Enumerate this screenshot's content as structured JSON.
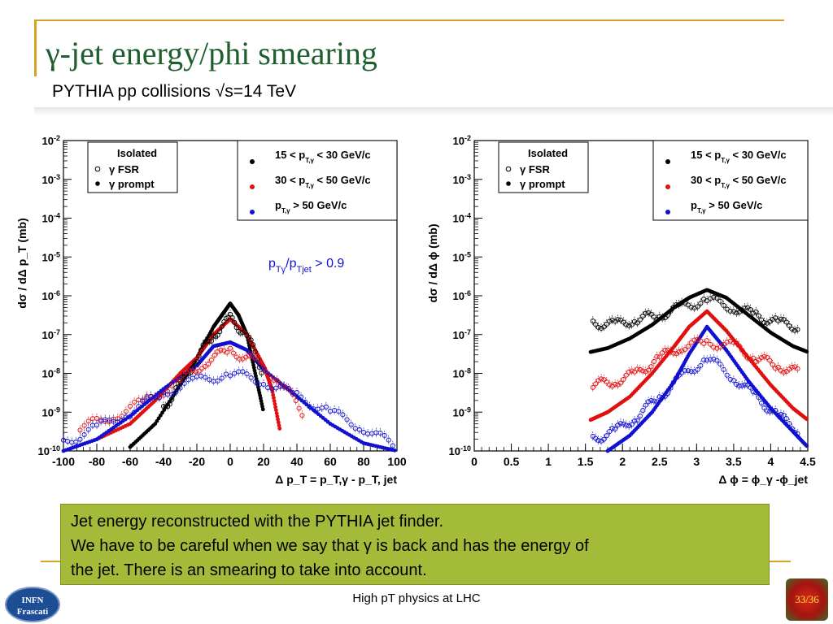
{
  "slide": {
    "title": "γ-jet energy/phi smearing",
    "subtitle": "PYTHIA pp collisions √s=14 TeV",
    "note_lines": [
      "Jet energy reconstructed with the PYTHIA jet finder.",
      "We have to be careful when we say that γ is back and has the energy of",
      "the jet. There is an smearing to take into account."
    ],
    "footer": "High pT physics at LHC",
    "page_number": "33/36",
    "logo_text": [
      "INFN",
      "Frascati"
    ]
  },
  "colors": {
    "accent": "#d8a224",
    "title": "#1f5f2f",
    "note_bg": "#a4bb3a",
    "black_series": "#000000",
    "red_series": "#e01010",
    "blue_series": "#1010d0",
    "cut_label": "#1010d0"
  },
  "chart_data": [
    {
      "type": "scatter",
      "ylabel": "dσ / dΔ p_T  (mb)",
      "xlabel": "Δ p_T = p_T,γ - p_T, jet",
      "xlim": [
        -100,
        100
      ],
      "xticks": [
        -100,
        -80,
        -60,
        -40,
        -20,
        0,
        20,
        40,
        60,
        80,
        100
      ],
      "ylim_log10": [
        -10,
        -2
      ],
      "yticks": [
        "10^-10",
        "10^-9",
        "10^-8",
        "10^-7",
        "10^-6",
        "10^-5",
        "10^-4",
        "10^-3",
        "10^-2"
      ],
      "yscale": "log",
      "annotation": "p_Tγ/p_Tjet > 0.9",
      "legend_marker": {
        "title": "Isolated",
        "entries": [
          "γ FSR",
          "γ prompt"
        ],
        "position": "top-left"
      },
      "legend_color": {
        "entries": [
          "15 < p_T,γ < 30 GeV/c",
          "30 < p_T,γ < 50 GeV/c",
          "p_T,γ > 50 GeV/c"
        ],
        "position": "top-right"
      },
      "series": [
        {
          "name": "15 < p_T,γ < 30 GeV/c",
          "kind": "prompt",
          "color": "black",
          "x": [
            -60,
            -45,
            -30,
            -20,
            -10,
            -5,
            0,
            5,
            10,
            15,
            20
          ],
          "log10_y": [
            -9.9,
            -9.3,
            -8.3,
            -7.6,
            -6.8,
            -6.5,
            -6.2,
            -6.5,
            -7.0,
            -8.0,
            -9.0
          ]
        },
        {
          "name": "30 < p_T,γ < 50 GeV/c",
          "kind": "prompt",
          "color": "red",
          "x": [
            -80,
            -60,
            -45,
            -30,
            -20,
            -10,
            0,
            10,
            20,
            25,
            30
          ],
          "log10_y": [
            -9.7,
            -9.3,
            -8.7,
            -8.0,
            -7.6,
            -7.0,
            -6.6,
            -7.0,
            -7.8,
            -8.4,
            -9.5
          ]
        },
        {
          "name": "p_T,γ > 50 GeV/c",
          "kind": "prompt",
          "color": "blue",
          "x": [
            -100,
            -80,
            -60,
            -40,
            -20,
            -10,
            0,
            10,
            20,
            40,
            60,
            80,
            100
          ],
          "log10_y": [
            -10.0,
            -9.7,
            -9.1,
            -8.4,
            -7.8,
            -7.3,
            -7.2,
            -7.4,
            -7.9,
            -8.6,
            -9.3,
            -9.8,
            -10.0
          ]
        },
        {
          "name": "15 < p_T,γ < 30 GeV/c",
          "kind": "FSR",
          "color": "black",
          "x": [
            -40,
            -30,
            -20,
            -10,
            0,
            10,
            20
          ],
          "log10_y": [
            -8.9,
            -8.3,
            -7.6,
            -7.0,
            -6.6,
            -7.0,
            -8.0
          ]
        },
        {
          "name": "30 < p_T,γ < 50 GeV/c",
          "kind": "FSR",
          "color": "red",
          "x": [
            -90,
            -70,
            -50,
            -30,
            -15,
            0,
            15,
            30,
            45
          ],
          "log10_y": [
            -9.4,
            -9.1,
            -8.7,
            -8.2,
            -7.7,
            -7.4,
            -7.7,
            -8.2,
            -9.1
          ]
        },
        {
          "name": "p_T,γ > 50 GeV/c",
          "kind": "FSR",
          "color": "blue",
          "x": [
            -100,
            -80,
            -60,
            -40,
            -20,
            0,
            20,
            40,
            60,
            80,
            100
          ],
          "log10_y": [
            -9.8,
            -9.4,
            -9.0,
            -8.5,
            -8.2,
            -8.0,
            -8.2,
            -8.6,
            -9.0,
            -9.4,
            -9.9
          ]
        }
      ]
    },
    {
      "type": "scatter",
      "ylabel": "dσ / dΔ ϕ  (mb)",
      "xlabel": "Δ ϕ = ϕ_γ -ϕ_jet",
      "xlim": [
        0,
        4.5
      ],
      "xticks": [
        0,
        0.5,
        1,
        1.5,
        2,
        2.5,
        3,
        3.5,
        4,
        4.5
      ],
      "ylim_log10": [
        -10,
        -2
      ],
      "yticks": [
        "10^-10",
        "10^-9",
        "10^-8",
        "10^-7",
        "10^-6",
        "10^-5",
        "10^-4",
        "10^-3",
        "10^-2"
      ],
      "yscale": "log",
      "legend_marker": {
        "title": "Isolated",
        "entries": [
          "γ FSR",
          "γ prompt"
        ],
        "position": "top-left"
      },
      "legend_color": {
        "entries": [
          "15 < p_T,γ < 30 GeV/c",
          "30 < p_T,γ < 50 GeV/c",
          "p_T,γ > 50 GeV/c"
        ],
        "position": "top-right"
      },
      "series": [
        {
          "name": "15 < p_T,γ < 30 GeV/c",
          "kind": "prompt",
          "color": "black",
          "x": [
            1.57,
            1.8,
            2.1,
            2.4,
            2.7,
            2.9,
            3.14,
            3.4,
            3.7,
            4.0,
            4.3,
            4.5
          ],
          "log10_y": [
            -7.45,
            -7.35,
            -7.1,
            -6.75,
            -6.3,
            -6.05,
            -5.85,
            -6.05,
            -6.5,
            -6.95,
            -7.3,
            -7.45
          ]
        },
        {
          "name": "30 < p_T,γ < 50 GeV/c",
          "kind": "prompt",
          "color": "red",
          "x": [
            1.57,
            1.8,
            2.1,
            2.4,
            2.7,
            2.9,
            3.14,
            3.4,
            3.7,
            4.0,
            4.3,
            4.5
          ],
          "log10_y": [
            -9.2,
            -9.0,
            -8.6,
            -8.0,
            -7.3,
            -6.8,
            -6.4,
            -6.9,
            -7.6,
            -8.3,
            -8.9,
            -9.2
          ]
        },
        {
          "name": "p_T,γ > 50 GeV/c",
          "kind": "prompt",
          "color": "blue",
          "x": [
            1.8,
            2.1,
            2.4,
            2.7,
            2.9,
            3.14,
            3.4,
            3.7,
            4.0,
            4.3,
            4.5
          ],
          "log10_y": [
            -10.0,
            -9.6,
            -9.0,
            -8.2,
            -7.5,
            -6.8,
            -7.4,
            -8.2,
            -8.9,
            -9.5,
            -9.9
          ]
        },
        {
          "name": "15 < p_T,γ < 30 GeV/c",
          "kind": "FSR",
          "color": "black",
          "x": [
            1.6,
            1.9,
            2.2,
            2.5,
            2.8,
            3.14,
            3.5,
            3.8,
            4.1,
            4.4
          ],
          "log10_y": [
            -6.7,
            -6.75,
            -6.6,
            -6.5,
            -6.3,
            -6.1,
            -6.3,
            -6.5,
            -6.7,
            -6.8
          ]
        },
        {
          "name": "30 < p_T,γ < 50 GeV/c",
          "kind": "FSR",
          "color": "red",
          "x": [
            1.6,
            1.9,
            2.2,
            2.5,
            2.8,
            3.14,
            3.5,
            3.8,
            4.1,
            4.4
          ],
          "log10_y": [
            -8.3,
            -8.2,
            -8.0,
            -7.6,
            -7.3,
            -7.2,
            -7.3,
            -7.6,
            -7.8,
            -8.0
          ]
        },
        {
          "name": "p_T,γ > 50 GeV/c",
          "kind": "FSR",
          "color": "blue",
          "x": [
            1.6,
            1.9,
            2.2,
            2.5,
            2.8,
            3.14,
            3.5,
            3.8,
            4.1,
            4.4
          ],
          "log10_y": [
            -9.7,
            -9.5,
            -9.1,
            -8.6,
            -8.1,
            -7.6,
            -8.1,
            -8.6,
            -9.1,
            -9.5
          ]
        }
      ]
    }
  ]
}
